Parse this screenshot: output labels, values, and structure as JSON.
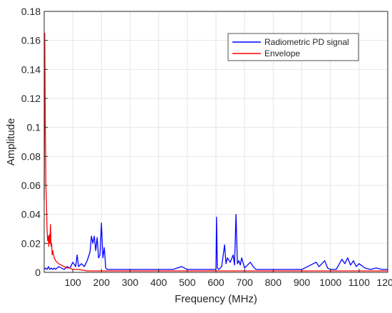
{
  "chart_data": {
    "type": "line",
    "xlabel": "Frequency (MHz)",
    "ylabel": "Amplitude",
    "xlim": [
      0,
      1200
    ],
    "ylim": [
      0,
      0.18
    ],
    "x_ticks": [
      100,
      200,
      300,
      400,
      500,
      600,
      700,
      800,
      900,
      1000,
      1100,
      1200
    ],
    "x_tick_labels": [
      "100",
      "200",
      "300",
      "400",
      "500",
      "600",
      "700",
      "800",
      "900",
      "1000",
      "1100",
      "1200"
    ],
    "y_ticks": [
      0,
      0.02,
      0.04,
      0.06,
      0.08,
      0.1,
      0.12,
      0.14,
      0.16,
      0.18
    ],
    "y_tick_labels": [
      "0",
      "0.02",
      "0.04",
      "0.06",
      "0.08",
      "0.1",
      "0.12",
      "0.14",
      "0.16",
      "0.18"
    ],
    "grid": true,
    "legend_position": "top-right",
    "series": [
      {
        "name": "Radiometric PD signal",
        "color": "#0000ff",
        "x": [
          0,
          5,
          10,
          15,
          20,
          25,
          30,
          35,
          40,
          50,
          60,
          70,
          80,
          90,
          100,
          110,
          115,
          120,
          130,
          140,
          150,
          160,
          165,
          170,
          175,
          180,
          185,
          190,
          195,
          200,
          205,
          210,
          215,
          220,
          250,
          300,
          350,
          400,
          450,
          480,
          500,
          550,
          600,
          602,
          605,
          610,
          620,
          630,
          635,
          640,
          650,
          660,
          665,
          670,
          675,
          680,
          685,
          690,
          700,
          720,
          730,
          740,
          750,
          800,
          850,
          900,
          950,
          960,
          970,
          980,
          990,
          1000,
          1020,
          1040,
          1050,
          1060,
          1070,
          1080,
          1090,
          1100,
          1120,
          1140,
          1160,
          1180,
          1200
        ],
        "y": [
          0.002,
          0.003,
          0.002,
          0.004,
          0.002,
          0.003,
          0.002,
          0.003,
          0.002,
          0.004,
          0.003,
          0.002,
          0.004,
          0.003,
          0.007,
          0.004,
          0.012,
          0.004,
          0.006,
          0.004,
          0.008,
          0.014,
          0.025,
          0.02,
          0.025,
          0.015,
          0.024,
          0.01,
          0.012,
          0.034,
          0.01,
          0.017,
          0.003,
          0.002,
          0.002,
          0.002,
          0.002,
          0.002,
          0.002,
          0.004,
          0.002,
          0.002,
          0.002,
          0.038,
          0.003,
          0.002,
          0.004,
          0.019,
          0.006,
          0.01,
          0.007,
          0.012,
          0.005,
          0.04,
          0.006,
          0.008,
          0.005,
          0.01,
          0.003,
          0.007,
          0.004,
          0.002,
          0.002,
          0.002,
          0.002,
          0.002,
          0.007,
          0.004,
          0.006,
          0.008,
          0.003,
          0.002,
          0.002,
          0.009,
          0.006,
          0.01,
          0.005,
          0.008,
          0.004,
          0.006,
          0.003,
          0.002,
          0.003,
          0.002,
          0.002
        ]
      },
      {
        "name": "Envelope",
        "color": "#ff0000",
        "x": [
          0,
          2,
          4,
          6,
          8,
          10,
          12,
          14,
          16,
          18,
          20,
          22,
          24,
          26,
          28,
          30,
          35,
          40,
          50,
          60,
          70,
          80,
          90,
          100,
          120,
          150,
          200,
          300,
          400,
          500,
          600,
          700,
          800,
          900,
          1000,
          1100,
          1200
        ],
        "y": [
          0.05,
          0.165,
          0.1,
          0.06,
          0.047,
          0.03,
          0.022,
          0.025,
          0.018,
          0.026,
          0.02,
          0.033,
          0.018,
          0.02,
          0.012,
          0.015,
          0.01,
          0.008,
          0.006,
          0.005,
          0.004,
          0.003,
          0.003,
          0.002,
          0.002,
          0.001,
          0.001,
          0.001,
          0.001,
          0.001,
          0.001,
          0.001,
          0.001,
          0.001,
          0.001,
          0.001,
          0.001
        ]
      }
    ]
  }
}
